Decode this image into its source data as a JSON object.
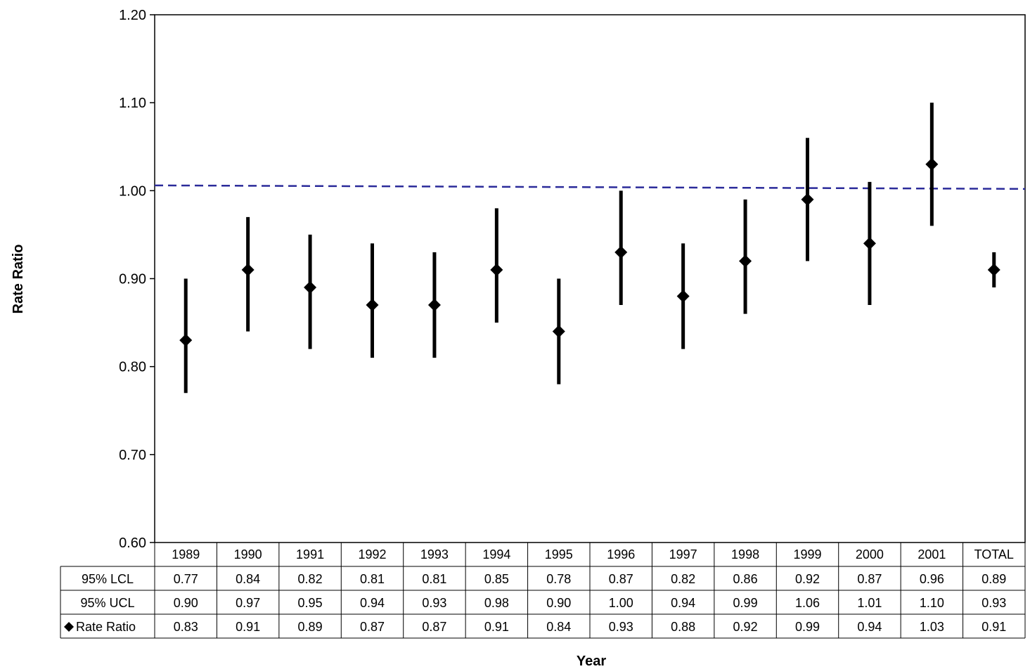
{
  "chart_data": {
    "type": "scatter",
    "title": "",
    "xlabel": "Year",
    "ylabel": "Rate Ratio",
    "categories": [
      "1989",
      "1990",
      "1991",
      "1992",
      "1993",
      "1994",
      "1995",
      "1996",
      "1997",
      "1998",
      "1999",
      "2000",
      "2001",
      "TOTAL"
    ],
    "ylim": [
      0.6,
      1.2
    ],
    "yticks": [
      "0.60",
      "0.70",
      "0.80",
      "0.90",
      "1.00",
      "1.10",
      "1.20"
    ],
    "grid": false,
    "reference_line": {
      "y_start": 1.006,
      "y_end": 1.002,
      "style": "dashed",
      "color": "#2b2b9a"
    },
    "series": [
      {
        "name": "95% LCL",
        "values": [
          0.77,
          0.84,
          0.82,
          0.81,
          0.81,
          0.85,
          0.78,
          0.87,
          0.82,
          0.86,
          0.92,
          0.87,
          0.96,
          0.89
        ]
      },
      {
        "name": "95% UCL",
        "values": [
          0.9,
          0.97,
          0.95,
          0.94,
          0.93,
          0.98,
          0.9,
          1.0,
          0.94,
          0.99,
          1.06,
          1.01,
          1.1,
          0.93
        ]
      },
      {
        "name": "Rate Ratio",
        "marker": "diamond",
        "values": [
          0.83,
          0.91,
          0.89,
          0.87,
          0.87,
          0.91,
          0.84,
          0.93,
          0.88,
          0.92,
          0.99,
          0.94,
          1.03,
          0.91
        ]
      }
    ],
    "table": {
      "rows": [
        {
          "label": "95% LCL",
          "cells": [
            "0.77",
            "0.84",
            "0.82",
            "0.81",
            "0.81",
            "0.85",
            "0.78",
            "0.87",
            "0.82",
            "0.86",
            "0.92",
            "0.87",
            "0.96",
            "0.89"
          ]
        },
        {
          "label": "95% UCL",
          "cells": [
            "0.90",
            "0.97",
            "0.95",
            "0.94",
            "0.93",
            "0.98",
            "0.90",
            "1.00",
            "0.94",
            "0.99",
            "1.06",
            "1.01",
            "1.10",
            "0.93"
          ]
        },
        {
          "label": "Rate Ratio",
          "legend_marker": "diamond",
          "cells": [
            "0.83",
            "0.91",
            "0.89",
            "0.87",
            "0.87",
            "0.91",
            "0.84",
            "0.93",
            "0.88",
            "0.92",
            "0.99",
            "0.94",
            "1.03",
            "0.91"
          ]
        }
      ]
    },
    "colors": {
      "marker": "#000000",
      "reference_line": "#2b2b9a"
    }
  }
}
